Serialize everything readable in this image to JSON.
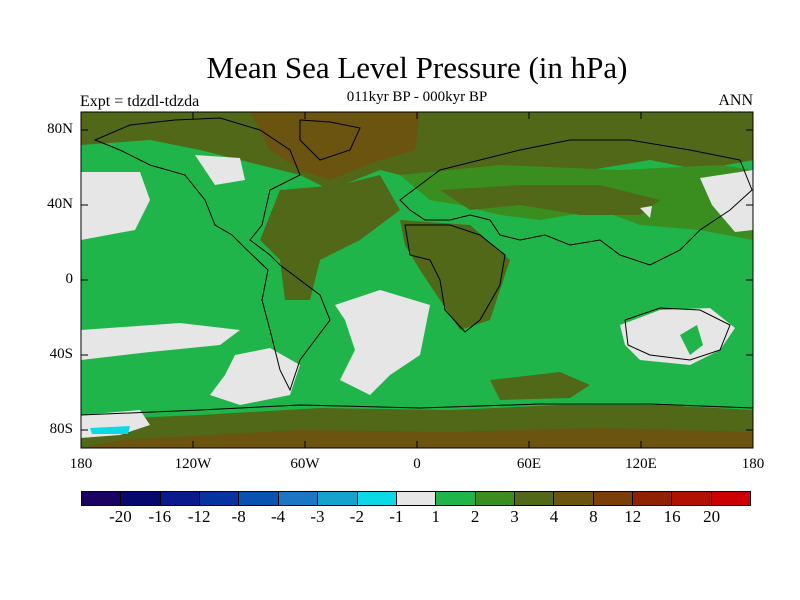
{
  "title": "Mean Sea Level Pressure (in hPa)",
  "subtitle": "011kyr BP - 000kyr BP",
  "experiment_label": "Expt = tdzdl-tdzda",
  "season_label": "ANN",
  "lat_labels": [
    "80N",
    "40N",
    "0",
    "40S",
    "80S"
  ],
  "lon_labels": [
    "180",
    "120W",
    "60W",
    "0",
    "60E",
    "120E",
    "180"
  ],
  "colorbar": {
    "colors": [
      "#1a0060",
      "#07086e",
      "#0a1a8c",
      "#0633a0",
      "#0a52b0",
      "#1c76c4",
      "#16a2cd",
      "#0cd9e6",
      "#e6e6e6",
      "#1fb54a",
      "#3a8e20",
      "#506818",
      "#6a5410",
      "#7a3e08",
      "#8f2200",
      "#b01200",
      "#cc0000"
    ],
    "labels": [
      "-20",
      "-16",
      "-12",
      "-8",
      "-4",
      "-3",
      "-2",
      "-1",
      "1",
      "2",
      "3",
      "4",
      "8",
      "12",
      "16",
      "20"
    ]
  },
  "colors": {
    "ocean_green": "#1fb54a",
    "mid_green": "#3a8e20",
    "olive": "#506818",
    "brown": "#6a5410",
    "near_zero": "#e6e6e6",
    "cyan": "#0cd9e6"
  }
}
